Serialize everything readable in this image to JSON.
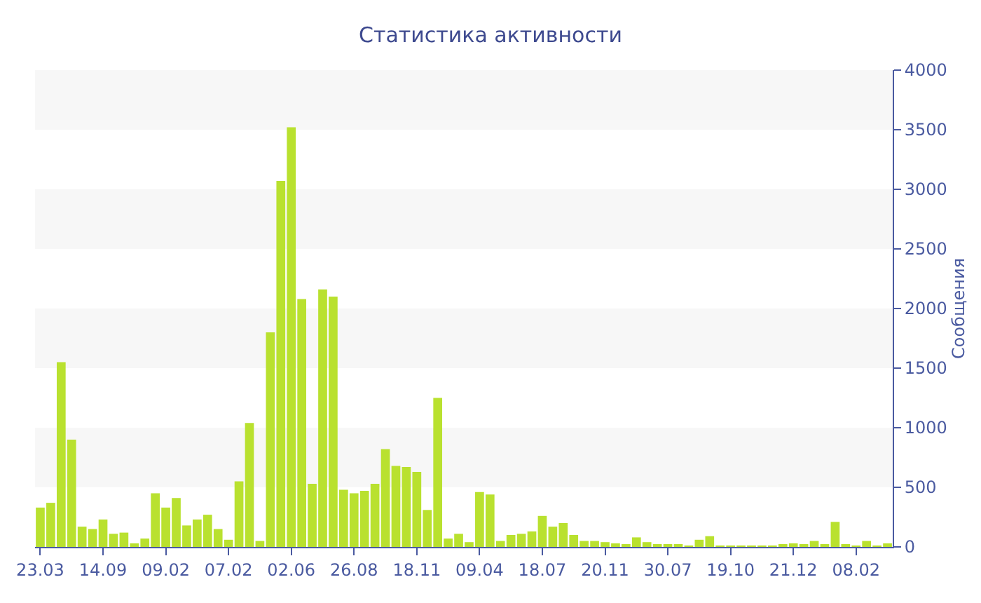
{
  "chart_data": {
    "type": "bar",
    "title": "Статистика активности",
    "ylabel": "Сообщения",
    "categories": [
      "23.03",
      null,
      null,
      null,
      null,
      null,
      "14.09",
      null,
      null,
      null,
      null,
      null,
      "09.02",
      null,
      null,
      null,
      null,
      null,
      "07.02",
      null,
      null,
      null,
      null,
      null,
      "02.06",
      null,
      null,
      null,
      null,
      null,
      "26.08",
      null,
      null,
      null,
      null,
      null,
      "18.11",
      null,
      null,
      null,
      null,
      null,
      "09.04",
      null,
      null,
      null,
      null,
      null,
      "18.07",
      null,
      null,
      null,
      null,
      null,
      "20.11",
      null,
      null,
      null,
      null,
      null,
      "30.07",
      null,
      null,
      null,
      null,
      null,
      "19.10",
      null,
      null,
      null,
      null,
      null,
      "21.12",
      null,
      null,
      null,
      null,
      null,
      "08.02",
      null,
      null,
      null
    ],
    "values": [
      330,
      370,
      1550,
      900,
      170,
      150,
      230,
      110,
      120,
      30,
      70,
      450,
      330,
      410,
      180,
      230,
      270,
      150,
      60,
      550,
      1040,
      50,
      1800,
      3070,
      3520,
      2080,
      530,
      2160,
      2100,
      480,
      450,
      470,
      530,
      820,
      680,
      670,
      630,
      310,
      1250,
      70,
      110,
      40,
      460,
      440,
      50,
      100,
      110,
      130,
      260,
      170,
      200,
      100,
      50,
      50,
      40,
      30,
      20,
      80,
      40,
      20,
      20,
      20,
      10,
      60,
      90,
      10,
      10,
      10,
      10,
      10,
      10,
      20,
      30,
      20,
      50,
      20,
      210,
      20,
      10,
      50,
      10,
      30
    ],
    "color": "#b9e12f",
    "ylim": [
      0,
      4000
    ],
    "yticks": [
      0,
      500,
      1000,
      1500,
      2000,
      2500,
      3000,
      3500,
      4000
    ],
    "bands": [
      {
        "axis": "y",
        "from": 500,
        "to": 1000,
        "color": "#f7f7f7"
      },
      {
        "axis": "y",
        "from": 1500,
        "to": 2000,
        "color": "#f7f7f7"
      },
      {
        "axis": "y",
        "from": 2500,
        "to": 3000,
        "color": "#f7f7f7"
      },
      {
        "axis": "y",
        "from": 3500,
        "to": 4000,
        "color": "#f7f7f7"
      }
    ]
  }
}
